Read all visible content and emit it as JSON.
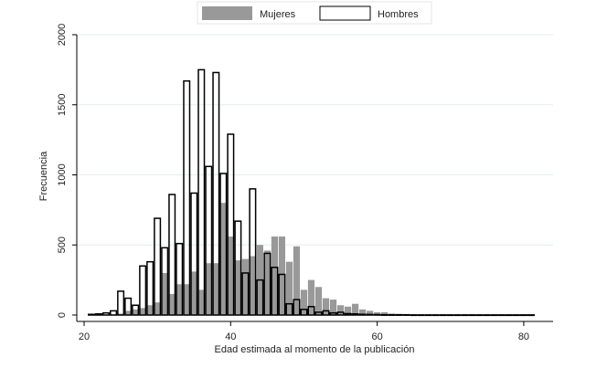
{
  "chart_data": {
    "type": "bar",
    "xlabel": "Edad estimada al momento de la publicación",
    "ylabel": "Frecuencia",
    "xlim": [
      19,
      84
    ],
    "ylim": [
      0,
      2000
    ],
    "xticks": [
      20,
      40,
      60,
      80
    ],
    "yticks": [
      0,
      500,
      1000,
      1500,
      2000
    ],
    "grid": "horizontal",
    "legend_position": "top",
    "bin_width": 1,
    "series": [
      {
        "name": "Mujeres",
        "color": "#999999",
        "x": [
          22,
          23,
          24,
          25,
          26,
          27,
          28,
          29,
          30,
          31,
          32,
          33,
          34,
          35,
          36,
          37,
          38,
          39,
          40,
          41,
          42,
          43,
          44,
          45,
          46,
          47,
          48,
          49,
          50,
          51,
          52,
          53,
          54,
          55,
          56,
          57,
          58,
          59,
          60,
          61,
          62,
          63,
          64,
          65,
          66,
          67,
          68
        ],
        "values": [
          2,
          3,
          5,
          10,
          30,
          40,
          50,
          70,
          90,
          300,
          150,
          220,
          220,
          310,
          180,
          370,
          370,
          800,
          560,
          390,
          400,
          420,
          500,
          460,
          560,
          560,
          380,
          490,
          180,
          250,
          200,
          120,
          110,
          70,
          60,
          80,
          40,
          30,
          20,
          20,
          10,
          8,
          6,
          5,
          3,
          2,
          1
        ]
      },
      {
        "name": "Hombres",
        "color": "#ffffff",
        "x": [
          21,
          22,
          23,
          24,
          25,
          26,
          27,
          28,
          29,
          30,
          31,
          32,
          33,
          34,
          35,
          36,
          37,
          38,
          39,
          40,
          41,
          42,
          43,
          44,
          45,
          46,
          47,
          48,
          49,
          50,
          51,
          52,
          53,
          54,
          55,
          56,
          57,
          58,
          59,
          60,
          61,
          62,
          63,
          64,
          65,
          66,
          67,
          68,
          69,
          70,
          71,
          72,
          73,
          74,
          75,
          76,
          77,
          78,
          79,
          80,
          81
        ],
        "values": [
          5,
          8,
          15,
          30,
          170,
          120,
          70,
          350,
          380,
          690,
          480,
          860,
          510,
          1670,
          870,
          1750,
          1060,
          1730,
          1010,
          1290,
          670,
          300,
          900,
          250,
          440,
          340,
          290,
          80,
          110,
          40,
          60,
          20,
          30,
          15,
          20,
          10,
          8,
          5,
          4,
          3,
          2,
          2,
          2,
          2,
          1,
          1,
          1,
          1,
          1,
          1,
          1,
          1,
          1,
          1,
          1,
          1,
          1,
          1,
          1,
          1,
          1
        ]
      }
    ]
  }
}
